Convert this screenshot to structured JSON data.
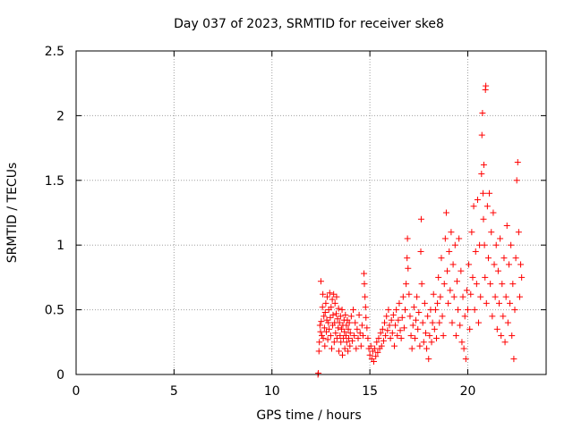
{
  "chart_data": {
    "type": "scatter",
    "title": "Day 037 of 2023, SRMTID for receiver ske8",
    "xlabel": "GPS time / hours",
    "ylabel": "SRMTID / TECUs",
    "xlim": [
      0,
      24
    ],
    "ylim": [
      0,
      2.5
    ],
    "xticks": [
      0,
      5,
      10,
      15,
      20
    ],
    "xtick_labels": [
      "0",
      "5",
      "10",
      "15",
      "20"
    ],
    "yticks": [
      0,
      0.5,
      1,
      1.5,
      2,
      2.5
    ],
    "ytick_labels": [
      "0",
      "0.5",
      "1",
      "1.5",
      "2",
      "2.5"
    ],
    "grid": true,
    "marker": "+",
    "color": "#ff0000",
    "series": [
      {
        "name": "SRMTID",
        "points": [
          [
            12.35,
            0.0
          ],
          [
            12.37,
            0.01
          ],
          [
            12.4,
            0.18
          ],
          [
            12.42,
            0.25
          ],
          [
            12.45,
            0.38
          ],
          [
            12.48,
            0.33
          ],
          [
            12.5,
            0.72
          ],
          [
            12.52,
            0.41
          ],
          [
            12.55,
            0.3
          ],
          [
            12.58,
            0.52
          ],
          [
            12.6,
            0.62
          ],
          [
            12.62,
            0.28
          ],
          [
            12.65,
            0.45
          ],
          [
            12.68,
            0.36
          ],
          [
            12.7,
            0.22
          ],
          [
            12.72,
            0.48
          ],
          [
            12.75,
            0.55
          ],
          [
            12.78,
            0.33
          ],
          [
            12.8,
            0.42
          ],
          [
            12.82,
            0.6
          ],
          [
            12.85,
            0.27
          ],
          [
            12.88,
            0.4
          ],
          [
            12.9,
            0.5
          ],
          [
            12.92,
            0.35
          ],
          [
            12.95,
            0.63
          ],
          [
            12.98,
            0.44
          ],
          [
            13.0,
            0.3
          ],
          [
            13.02,
            0.52
          ],
          [
            13.05,
            0.2
          ],
          [
            13.08,
            0.58
          ],
          [
            13.1,
            0.38
          ],
          [
            13.12,
            0.46
          ],
          [
            13.15,
            0.62
          ],
          [
            13.18,
            0.25
          ],
          [
            13.2,
            0.4
          ],
          [
            13.22,
            0.55
          ],
          [
            13.25,
            0.32
          ],
          [
            13.28,
            0.47
          ],
          [
            13.3,
            0.6
          ],
          [
            13.32,
            0.28
          ],
          [
            13.35,
            0.43
          ],
          [
            13.38,
            0.36
          ],
          [
            13.4,
            0.51
          ],
          [
            13.42,
            0.18
          ],
          [
            13.45,
            0.4
          ],
          [
            13.48,
            0.3
          ],
          [
            13.5,
            0.45
          ],
          [
            13.52,
            0.25
          ],
          [
            13.55,
            0.35
          ],
          [
            13.58,
            0.5
          ],
          [
            13.6,
            0.15
          ],
          [
            13.62,
            0.38
          ],
          [
            13.65,
            0.28
          ],
          [
            13.68,
            0.42
          ],
          [
            13.7,
            0.33
          ],
          [
            13.72,
            0.2
          ],
          [
            13.75,
            0.46
          ],
          [
            13.78,
            0.3
          ],
          [
            13.8,
            0.38
          ],
          [
            13.82,
            0.25
          ],
          [
            13.85,
            0.42
          ],
          [
            13.88,
            0.18
          ],
          [
            13.9,
            0.35
          ],
          [
            13.92,
            0.28
          ],
          [
            13.95,
            0.4
          ],
          [
            13.98,
            0.22
          ],
          [
            14.0,
            0.32
          ],
          [
            14.05,
            0.45
          ],
          [
            14.1,
            0.26
          ],
          [
            14.15,
            0.5
          ],
          [
            14.2,
            0.3
          ],
          [
            14.25,
            0.4
          ],
          [
            14.3,
            0.2
          ],
          [
            14.35,
            0.35
          ],
          [
            14.4,
            0.28
          ],
          [
            14.45,
            0.46
          ],
          [
            14.5,
            0.32
          ],
          [
            14.55,
            0.22
          ],
          [
            14.6,
            0.38
          ],
          [
            14.65,
            0.3
          ],
          [
            14.7,
            0.78
          ],
          [
            14.72,
            0.7
          ],
          [
            14.75,
            0.6
          ],
          [
            14.78,
            0.52
          ],
          [
            14.8,
            0.44
          ],
          [
            14.85,
            0.36
          ],
          [
            14.9,
            0.28
          ],
          [
            14.95,
            0.2
          ],
          [
            15.0,
            0.15
          ],
          [
            15.05,
            0.22
          ],
          [
            15.1,
            0.12
          ],
          [
            15.15,
            0.18
          ],
          [
            15.2,
            0.1
          ],
          [
            15.25,
            0.2
          ],
          [
            15.3,
            0.14
          ],
          [
            15.35,
            0.25
          ],
          [
            15.4,
            0.17
          ],
          [
            15.45,
            0.28
          ],
          [
            15.5,
            0.2
          ],
          [
            15.55,
            0.32
          ],
          [
            15.6,
            0.22
          ],
          [
            15.65,
            0.35
          ],
          [
            15.7,
            0.26
          ],
          [
            15.75,
            0.4
          ],
          [
            15.8,
            0.3
          ],
          [
            15.85,
            0.45
          ],
          [
            15.9,
            0.34
          ],
          [
            15.95,
            0.5
          ],
          [
            16.0,
            0.38
          ],
          [
            16.05,
            0.28
          ],
          [
            16.1,
            0.42
          ],
          [
            16.15,
            0.32
          ],
          [
            16.2,
            0.46
          ],
          [
            16.25,
            0.22
          ],
          [
            16.3,
            0.38
          ],
          [
            16.35,
            0.5
          ],
          [
            16.4,
            0.3
          ],
          [
            16.45,
            0.42
          ],
          [
            16.5,
            0.55
          ],
          [
            16.55,
            0.34
          ],
          [
            16.6,
            0.28
          ],
          [
            16.65,
            0.44
          ],
          [
            16.7,
            0.6
          ],
          [
            16.75,
            0.36
          ],
          [
            16.8,
            0.5
          ],
          [
            16.85,
            0.7
          ],
          [
            16.9,
            0.9
          ],
          [
            16.92,
            1.05
          ],
          [
            16.95,
            0.82
          ],
          [
            17.0,
            0.62
          ],
          [
            17.05,
            0.45
          ],
          [
            17.1,
            0.3
          ],
          [
            17.15,
            0.2
          ],
          [
            17.2,
            0.38
          ],
          [
            17.25,
            0.52
          ],
          [
            17.3,
            0.28
          ],
          [
            17.35,
            0.42
          ],
          [
            17.4,
            0.6
          ],
          [
            17.45,
            0.35
          ],
          [
            17.5,
            0.48
          ],
          [
            17.55,
            0.22
          ],
          [
            17.6,
            0.95
          ],
          [
            17.62,
            1.2
          ],
          [
            17.65,
            0.7
          ],
          [
            17.7,
            0.4
          ],
          [
            17.75,
            0.25
          ],
          [
            17.8,
            0.55
          ],
          [
            17.85,
            0.32
          ],
          [
            17.9,
            0.2
          ],
          [
            17.95,
            0.45
          ],
          [
            18.0,
            0.12
          ],
          [
            18.05,
            0.3
          ],
          [
            18.1,
            0.5
          ],
          [
            18.15,
            0.25
          ],
          [
            18.2,
            0.4
          ],
          [
            18.25,
            0.62
          ],
          [
            18.3,
            0.35
          ],
          [
            18.35,
            0.5
          ],
          [
            18.4,
            0.28
          ],
          [
            18.45,
            0.55
          ],
          [
            18.5,
            0.75
          ],
          [
            18.55,
            0.4
          ],
          [
            18.6,
            0.6
          ],
          [
            18.65,
            0.9
          ],
          [
            18.7,
            0.45
          ],
          [
            18.75,
            0.3
          ],
          [
            18.8,
            0.7
          ],
          [
            18.85,
            1.05
          ],
          [
            18.9,
            1.25
          ],
          [
            18.95,
            0.8
          ],
          [
            19.0,
            0.55
          ],
          [
            19.05,
            0.95
          ],
          [
            19.1,
            0.65
          ],
          [
            19.15,
            1.1
          ],
          [
            19.2,
            0.4
          ],
          [
            19.25,
            0.85
          ],
          [
            19.3,
            0.6
          ],
          [
            19.35,
            1.0
          ],
          [
            19.4,
            0.3
          ],
          [
            19.45,
            0.72
          ],
          [
            19.5,
            0.5
          ],
          [
            19.55,
            1.05
          ],
          [
            19.6,
            0.38
          ],
          [
            19.65,
            0.8
          ],
          [
            19.7,
            0.25
          ],
          [
            19.75,
            0.6
          ],
          [
            19.8,
            0.2
          ],
          [
            19.85,
            0.45
          ],
          [
            19.9,
            0.12
          ],
          [
            19.95,
            0.65
          ],
          [
            20.0,
            0.5
          ],
          [
            20.05,
            0.85
          ],
          [
            20.1,
            0.35
          ],
          [
            20.15,
            0.62
          ],
          [
            20.2,
            1.1
          ],
          [
            20.25,
            0.75
          ],
          [
            20.3,
            1.3
          ],
          [
            20.35,
            0.5
          ],
          [
            20.4,
            0.95
          ],
          [
            20.45,
            0.7
          ],
          [
            20.5,
            1.35
          ],
          [
            20.55,
            0.4
          ],
          [
            20.6,
            1.0
          ],
          [
            20.65,
            0.6
          ],
          [
            20.7,
            1.55
          ],
          [
            20.72,
            1.85
          ],
          [
            20.75,
            2.02
          ],
          [
            20.78,
            1.4
          ],
          [
            20.8,
            1.2
          ],
          [
            20.82,
            1.62
          ],
          [
            20.85,
            1.0
          ],
          [
            20.88,
            0.75
          ],
          [
            20.9,
            2.2
          ],
          [
            20.92,
            2.23
          ],
          [
            20.95,
            0.55
          ],
          [
            21.0,
            1.3
          ],
          [
            21.05,
            0.9
          ],
          [
            21.1,
            1.4
          ],
          [
            21.15,
            0.7
          ],
          [
            21.2,
            1.1
          ],
          [
            21.25,
            0.45
          ],
          [
            21.3,
            1.25
          ],
          [
            21.35,
            0.85
          ],
          [
            21.4,
            0.6
          ],
          [
            21.45,
            1.0
          ],
          [
            21.5,
            0.35
          ],
          [
            21.55,
            0.8
          ],
          [
            21.6,
            0.55
          ],
          [
            21.65,
            1.05
          ],
          [
            21.7,
            0.3
          ],
          [
            21.75,
            0.7
          ],
          [
            21.8,
            0.45
          ],
          [
            21.85,
            0.9
          ],
          [
            21.9,
            0.25
          ],
          [
            21.95,
            0.6
          ],
          [
            22.0,
            1.15
          ],
          [
            22.05,
            0.4
          ],
          [
            22.1,
            0.85
          ],
          [
            22.15,
            0.55
          ],
          [
            22.2,
            1.0
          ],
          [
            22.25,
            0.3
          ],
          [
            22.3,
            0.7
          ],
          [
            22.35,
            0.12
          ],
          [
            22.4,
            0.5
          ],
          [
            22.45,
            0.9
          ],
          [
            22.5,
            1.5
          ],
          [
            22.55,
            1.64
          ],
          [
            22.6,
            1.1
          ],
          [
            22.65,
            0.6
          ],
          [
            22.7,
            0.85
          ],
          [
            22.75,
            0.75
          ]
        ]
      }
    ]
  }
}
